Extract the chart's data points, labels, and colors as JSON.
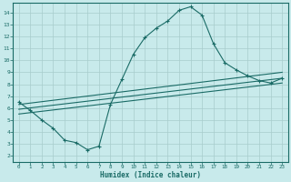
{
  "xlabel": "Humidex (Indice chaleur)",
  "bg_color": "#c8eaeb",
  "grid_color": "#a8cccc",
  "line_color": "#1a6b66",
  "xlim": [
    -0.5,
    23.5
  ],
  "ylim": [
    1.5,
    14.8
  ],
  "yticks": [
    2,
    3,
    4,
    5,
    6,
    7,
    8,
    9,
    10,
    11,
    12,
    13,
    14
  ],
  "xticks": [
    0,
    1,
    2,
    3,
    4,
    5,
    6,
    7,
    8,
    9,
    10,
    11,
    12,
    13,
    14,
    15,
    16,
    17,
    18,
    19,
    20,
    21,
    22,
    23
  ],
  "main_line_x": [
    0,
    1,
    2,
    3,
    4,
    5,
    6,
    7,
    8,
    9,
    10,
    11,
    12,
    13,
    14,
    15,
    16,
    17,
    18,
    19,
    20,
    21,
    22,
    23
  ],
  "main_line_y": [
    6.5,
    5.8,
    5.0,
    4.3,
    3.3,
    3.1,
    2.5,
    2.8,
    6.3,
    8.4,
    10.5,
    11.9,
    12.7,
    13.3,
    14.2,
    14.5,
    13.8,
    11.4,
    9.8,
    9.2,
    8.7,
    8.3,
    8.1,
    8.5
  ],
  "line2_x": [
    0,
    23
  ],
  "line2_y": [
    6.3,
    9.0
  ],
  "line3_x": [
    0,
    23
  ],
  "line3_y": [
    5.9,
    8.5
  ],
  "line4_x": [
    0,
    23
  ],
  "line4_y": [
    5.5,
    8.1
  ]
}
